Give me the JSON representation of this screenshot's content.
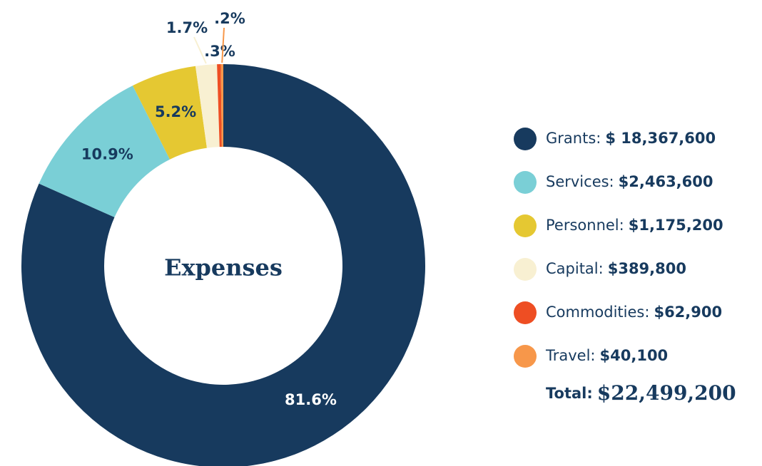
{
  "chart_data": {
    "type": "donut",
    "center_label": "Expenses",
    "categories": [
      "Grants:",
      "Services:",
      "Personnel:",
      "Capital:",
      "Commodities:",
      "Travel:"
    ],
    "values": [
      81.6,
      10.9,
      5.2,
      1.7,
      0.3,
      0.2
    ],
    "value_labels": [
      "81.6%",
      "10.9%",
      "5.2%",
      "1.7%",
      ".3%",
      ".2%"
    ],
    "colors": [
      "#173a5e",
      "#7acfd6",
      "#e5c832",
      "#f8f0d2",
      "#ee4e23",
      "#f7974a"
    ],
    "legend_values": [
      "$ 18,367,600",
      "$2,463,600",
      "$1,175,200",
      "$389,800",
      "$62,900",
      "$40,100"
    ],
    "total_label": "Total:",
    "total_value": "$22,499,200"
  }
}
